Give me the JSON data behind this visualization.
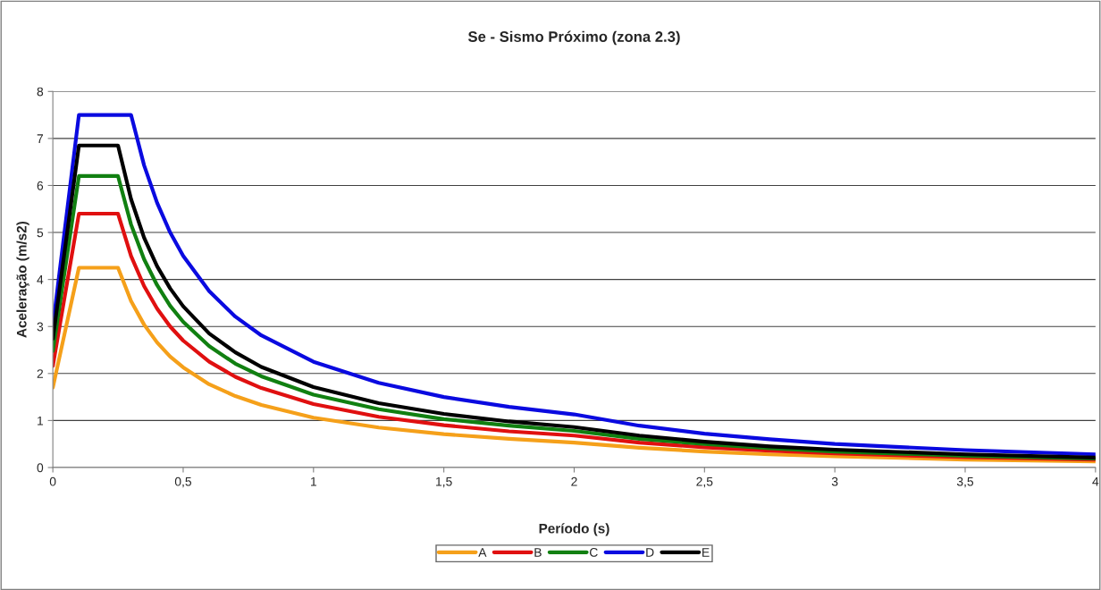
{
  "chart_data": {
    "type": "line",
    "title": "Se - Sismo Próximo (zona 2.3)",
    "xlabel": "Período (s)",
    "ylabel": "Aceleração (m/s2)",
    "x": [
      0,
      0.1,
      0.25,
      0.3,
      0.35,
      0.4,
      0.45,
      0.5,
      0.6,
      0.7,
      0.8,
      1,
      1.25,
      1.5,
      1.75,
      2,
      2.25,
      2.5,
      2.75,
      3,
      3.5,
      4
    ],
    "series": [
      {
        "name": "A",
        "color": "#f5a01a",
        "values": [
          1.7,
          4.25,
          4.25,
          3.54,
          3.04,
          2.66,
          2.36,
          2.13,
          1.77,
          1.52,
          1.33,
          1.06,
          0.85,
          0.71,
          0.61,
          0.53,
          0.42,
          0.34,
          0.28,
          0.24,
          0.17,
          0.13
        ]
      },
      {
        "name": "B",
        "color": "#e01010",
        "values": [
          2.16,
          5.4,
          5.4,
          4.5,
          3.86,
          3.38,
          3.0,
          2.7,
          2.25,
          1.93,
          1.69,
          1.35,
          1.08,
          0.9,
          0.77,
          0.68,
          0.53,
          0.43,
          0.36,
          0.3,
          0.22,
          0.17
        ]
      },
      {
        "name": "C",
        "color": "#118011",
        "values": [
          2.48,
          6.2,
          6.2,
          5.17,
          4.43,
          3.88,
          3.44,
          3.1,
          2.58,
          2.21,
          1.94,
          1.55,
          1.24,
          1.03,
          0.89,
          0.78,
          0.61,
          0.5,
          0.41,
          0.34,
          0.25,
          0.19
        ]
      },
      {
        "name": "D",
        "color": "#0a0ae0",
        "values": [
          3.0,
          7.5,
          7.5,
          7.5,
          6.43,
          5.63,
          5.0,
          4.5,
          3.75,
          3.21,
          2.81,
          2.25,
          1.8,
          1.5,
          1.29,
          1.13,
          0.89,
          0.72,
          0.6,
          0.5,
          0.37,
          0.28
        ]
      },
      {
        "name": "E",
        "color": "#000000",
        "values": [
          2.74,
          6.85,
          6.85,
          5.71,
          4.89,
          4.28,
          3.81,
          3.43,
          2.85,
          2.45,
          2.14,
          1.71,
          1.37,
          1.14,
          0.98,
          0.86,
          0.68,
          0.55,
          0.45,
          0.38,
          0.28,
          0.21
        ]
      }
    ],
    "xlim": [
      0,
      4
    ],
    "ylim": [
      0,
      8
    ],
    "xticks": [
      0,
      {
        "value": 0.5,
        "label": "0,5"
      },
      1,
      {
        "value": 1.5,
        "label": "1,5"
      },
      2,
      {
        "value": 2.5,
        "label": "2,5"
      },
      3,
      {
        "value": 3.5,
        "label": "3,5"
      },
      4
    ],
    "yticks": [
      0,
      1,
      2,
      3,
      4,
      5,
      6,
      7,
      8
    ],
    "grid": "y",
    "legend": "bottom",
    "marker": "none",
    "line_style": "solid"
  }
}
